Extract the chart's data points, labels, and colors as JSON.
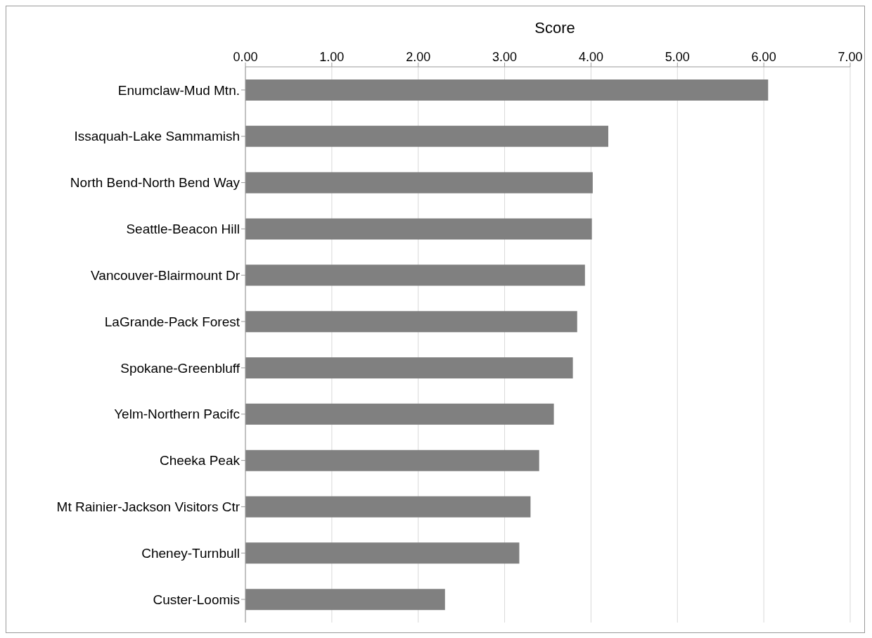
{
  "chart_data": {
    "type": "bar",
    "orientation": "horizontal",
    "xlabel": "Score",
    "categories": [
      "Enumclaw-Mud Mtn.",
      "Issaquah-Lake Sammamish",
      "North Bend-North Bend Way",
      "Seattle-Beacon Hill",
      "Vancouver-Blairmount Dr",
      "LaGrande-Pack Forest",
      "Spokane-Greenbluff",
      "Yelm-Northern Pacifc",
      "Cheeka Peak",
      "Mt Rainier-Jackson Visitors Ctr",
      "Cheney-Turnbull",
      "Custer-Loomis"
    ],
    "values": [
      6.05,
      4.2,
      4.02,
      4.01,
      3.93,
      3.84,
      3.79,
      3.57,
      3.4,
      3.3,
      3.17,
      2.31
    ],
    "color": "#808080",
    "xlim": [
      0,
      7
    ],
    "xticks": [
      {
        "value": 0,
        "label": "0.00"
      },
      {
        "value": 1,
        "label": "1.00"
      },
      {
        "value": 2,
        "label": "2.00"
      },
      {
        "value": 3,
        "label": "3.00"
      },
      {
        "value": 4,
        "label": "4.00"
      },
      {
        "value": 5,
        "label": "5.00"
      },
      {
        "value": 6,
        "label": "6.00"
      },
      {
        "value": 7,
        "label": "7.00"
      }
    ],
    "grid": "x"
  }
}
